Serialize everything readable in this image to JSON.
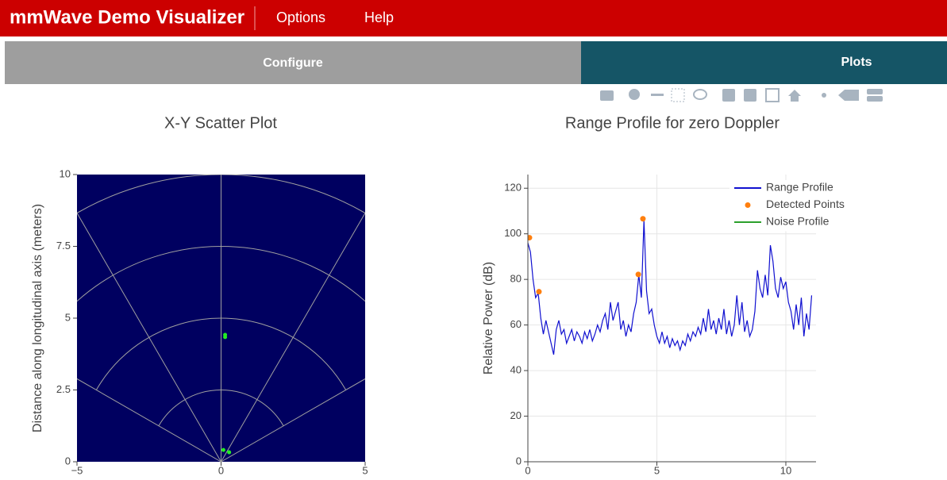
{
  "header": {
    "title": "mmWave Demo Visualizer",
    "menu": [
      "Options",
      "Help"
    ]
  },
  "tabs": [
    "Configure",
    "Plots"
  ],
  "chart_data": [
    {
      "type": "scatter",
      "title": "X-Y Scatter Plot",
      "y_label": "Distance along longitudinal axis (meters)",
      "xlim": [
        -5,
        5
      ],
      "ylim": [
        0,
        10
      ],
      "xticks": [
        {
          "value": -5,
          "label": "−5"
        },
        0,
        5
      ],
      "yticks": [
        0,
        2.5,
        5,
        7.5,
        10
      ],
      "grid": "polar",
      "background": "#000060",
      "series": [
        {
          "color": "#22ee22",
          "x": [
            0.14,
            0.14,
            0.08,
            0.28
          ],
          "values": [
            4.42,
            4.34,
            0.41,
            0.33
          ]
        }
      ]
    },
    {
      "type": "line",
      "title": "Range Profile for zero Doppler",
      "y_label": "Relative Power (dB)",
      "xlim": [
        0,
        11.17
      ],
      "ylim": [
        0,
        126
      ],
      "xticks": [
        0,
        5,
        10
      ],
      "yticks": [
        0,
        20,
        40,
        60,
        80,
        100,
        120
      ],
      "grid": true,
      "legend": "top-right",
      "series": [
        {
          "name": "Range Profile",
          "color": "#1010d0",
          "mode": "lines",
          "x": [
            0,
            0.1,
            0.2,
            0.3,
            0.4,
            0.5,
            0.6,
            0.7,
            0.8,
            0.9,
            1,
            1.1,
            1.2,
            1.3,
            1.4,
            1.5,
            1.6,
            1.7,
            1.8,
            1.9,
            2,
            2.1,
            2.2,
            2.3,
            2.4,
            2.5,
            2.6,
            2.7,
            2.8,
            2.9,
            3,
            3.1,
            3.2,
            3.3,
            3.4,
            3.5,
            3.6,
            3.7,
            3.8,
            3.9,
            4,
            4.1,
            4.2,
            4.3,
            4.4,
            4.5,
            4.6,
            4.7,
            4.8,
            4.9,
            5,
            5.1,
            5.2,
            5.3,
            5.4,
            5.5,
            5.6,
            5.7,
            5.8,
            5.9,
            6,
            6.1,
            6.2,
            6.3,
            6.4,
            6.5,
            6.6,
            6.7,
            6.8,
            6.9,
            7,
            7.1,
            7.2,
            7.3,
            7.4,
            7.5,
            7.6,
            7.7,
            7.8,
            7.9,
            8,
            8.1,
            8.2,
            8.3,
            8.4,
            8.5,
            8.6,
            8.7,
            8.8,
            8.9,
            9,
            9.1,
            9.2,
            9.3,
            9.4,
            9.5,
            9.6,
            9.7,
            9.8,
            9.9,
            10,
            10.1,
            10.2,
            10.3,
            10.4,
            10.5,
            10.6,
            10.7,
            10.8,
            10.9,
            11
          ],
          "values": [
            96,
            92,
            80,
            72,
            74,
            63,
            56,
            62,
            57,
            52,
            47,
            58,
            62,
            56,
            58,
            52,
            55,
            58,
            53,
            57,
            55,
            52,
            57,
            54,
            58,
            53,
            56,
            60,
            57,
            62,
            65,
            58,
            70,
            62,
            66,
            70,
            58,
            62,
            55,
            60,
            57,
            65,
            70,
            82,
            72,
            106,
            75,
            65,
            67,
            60,
            55,
            52,
            57,
            52,
            55,
            50,
            54,
            51,
            53,
            49,
            53,
            51,
            56,
            53,
            57,
            55,
            59,
            56,
            63,
            57,
            67,
            58,
            62,
            56,
            63,
            58,
            67,
            56,
            62,
            55,
            60,
            73,
            60,
            70,
            57,
            62,
            55,
            58,
            66,
            84,
            76,
            72,
            82,
            73,
            95,
            88,
            76,
            72,
            81,
            76,
            79,
            70,
            66,
            58,
            69,
            60,
            72,
            55,
            65,
            58,
            73
          ]
        },
        {
          "name": "Detected Points",
          "color": "#ff7f0e",
          "mode": "markers",
          "x": [
            0.06,
            0.43,
            4.28,
            4.46
          ],
          "values": [
            98.3,
            74.6,
            82.2,
            106.6
          ]
        },
        {
          "name": "Noise Profile",
          "color": "#2ca02c",
          "mode": "lines"
        }
      ]
    }
  ]
}
